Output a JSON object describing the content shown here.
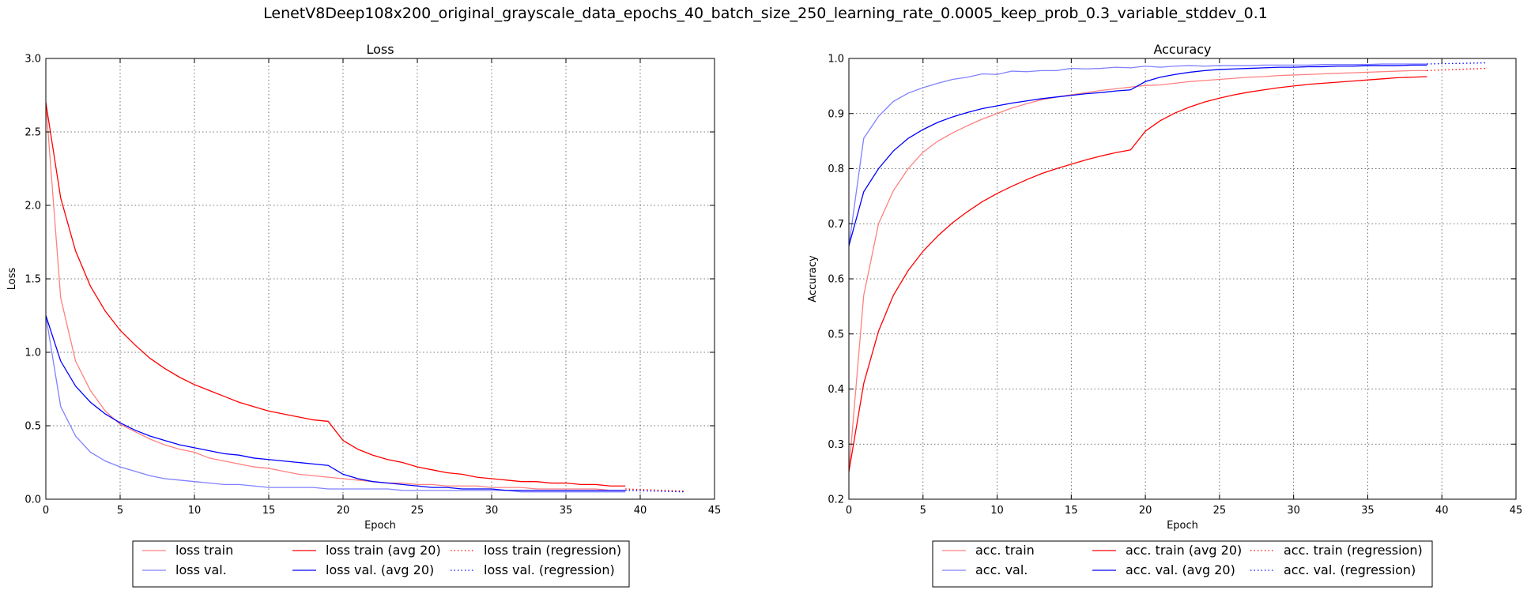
{
  "suptitle": "LenetV8Deep108x200_original_grayscale_data_epochs_40_batch_size_250_learning_rate_0.0005_keep_prob_0.3_variable_stddev_0.1",
  "colors": {
    "train": "#ff0000",
    "val": "#0000ff",
    "train_light": "#ff8080",
    "val_light": "#8080ff"
  },
  "chart_data": [
    {
      "type": "line",
      "title": "Loss",
      "xlabel": "Epoch",
      "ylabel": "Loss",
      "xlim": [
        0,
        45
      ],
      "ylim": [
        0,
        3.0
      ],
      "xticks": [
        "0",
        "5",
        "10",
        "15",
        "20",
        "25",
        "30",
        "35",
        "40",
        "45"
      ],
      "yticks": [
        "0.0",
        "0.5",
        "1.0",
        "1.5",
        "2.0",
        "2.5",
        "3.0"
      ],
      "grid": true,
      "legend_position": "below",
      "series": [
        {
          "name": "loss train",
          "color": "train_light",
          "style": "solid",
          "x": [
            0,
            1,
            2,
            3,
            4,
            5,
            6,
            7,
            8,
            9,
            10,
            11,
            12,
            13,
            14,
            15,
            16,
            17,
            18,
            19,
            20,
            21,
            22,
            23,
            24,
            25,
            26,
            27,
            28,
            29,
            30,
            31,
            32,
            33,
            34,
            35,
            36,
            37,
            38,
            39
          ],
          "values": [
            2.7,
            1.37,
            0.94,
            0.74,
            0.6,
            0.51,
            0.46,
            0.41,
            0.37,
            0.34,
            0.32,
            0.28,
            0.26,
            0.24,
            0.22,
            0.21,
            0.19,
            0.17,
            0.16,
            0.15,
            0.14,
            0.13,
            0.12,
            0.11,
            0.11,
            0.1,
            0.1,
            0.09,
            0.09,
            0.09,
            0.08,
            0.08,
            0.08,
            0.07,
            0.07,
            0.07,
            0.07,
            0.07,
            0.06,
            0.06
          ]
        },
        {
          "name": "loss val.",
          "color": "val_light",
          "style": "solid",
          "x": [
            0,
            1,
            2,
            3,
            4,
            5,
            6,
            7,
            8,
            9,
            10,
            11,
            12,
            13,
            14,
            15,
            16,
            17,
            18,
            19,
            20,
            21,
            22,
            23,
            24,
            25,
            26,
            27,
            28,
            29,
            30,
            31,
            32,
            33,
            34,
            35,
            36,
            37,
            38,
            39
          ],
          "values": [
            1.25,
            0.63,
            0.43,
            0.32,
            0.26,
            0.22,
            0.19,
            0.16,
            0.14,
            0.13,
            0.12,
            0.11,
            0.1,
            0.1,
            0.09,
            0.08,
            0.08,
            0.08,
            0.08,
            0.07,
            0.07,
            0.07,
            0.07,
            0.07,
            0.06,
            0.06,
            0.06,
            0.06,
            0.06,
            0.06,
            0.06,
            0.06,
            0.05,
            0.05,
            0.05,
            0.05,
            0.05,
            0.05,
            0.05,
            0.05
          ]
        },
        {
          "name": "loss train (avg 20)",
          "color": "train",
          "style": "solid",
          "x": [
            0,
            1,
            2,
            3,
            4,
            5,
            6,
            7,
            8,
            9,
            10,
            11,
            12,
            13,
            14,
            15,
            16,
            17,
            18,
            19,
            20,
            21,
            22,
            23,
            24,
            25,
            26,
            27,
            28,
            29,
            30,
            31,
            32,
            33,
            34,
            35,
            36,
            37,
            38,
            39
          ],
          "values": [
            2.7,
            2.05,
            1.69,
            1.45,
            1.28,
            1.15,
            1.05,
            0.96,
            0.89,
            0.83,
            0.78,
            0.74,
            0.7,
            0.66,
            0.63,
            0.6,
            0.58,
            0.56,
            0.54,
            0.53,
            0.4,
            0.34,
            0.3,
            0.27,
            0.25,
            0.22,
            0.2,
            0.18,
            0.17,
            0.15,
            0.14,
            0.13,
            0.12,
            0.12,
            0.11,
            0.11,
            0.1,
            0.1,
            0.09,
            0.09
          ]
        },
        {
          "name": "loss val. (avg 20)",
          "color": "val",
          "style": "solid",
          "x": [
            0,
            1,
            2,
            3,
            4,
            5,
            6,
            7,
            8,
            9,
            10,
            11,
            12,
            13,
            14,
            15,
            16,
            17,
            18,
            19,
            20,
            21,
            22,
            23,
            24,
            25,
            26,
            27,
            28,
            29,
            30,
            31,
            32,
            33,
            34,
            35,
            36,
            37,
            38,
            39
          ],
          "values": [
            1.25,
            0.94,
            0.77,
            0.66,
            0.58,
            0.52,
            0.47,
            0.43,
            0.4,
            0.37,
            0.35,
            0.33,
            0.31,
            0.3,
            0.28,
            0.27,
            0.26,
            0.25,
            0.24,
            0.23,
            0.17,
            0.14,
            0.12,
            0.11,
            0.1,
            0.09,
            0.08,
            0.08,
            0.07,
            0.07,
            0.07,
            0.06,
            0.06,
            0.06,
            0.06,
            0.06,
            0.06,
            0.06,
            0.06,
            0.06
          ]
        },
        {
          "name": "loss train (regression)",
          "color": "train",
          "style": "dotted",
          "x": [
            39,
            43
          ],
          "values": [
            0.07,
            0.055
          ]
        },
        {
          "name": "loss val. (regression)",
          "color": "val",
          "style": "dotted",
          "x": [
            39,
            43
          ],
          "values": [
            0.06,
            0.05
          ]
        }
      ]
    },
    {
      "type": "line",
      "title": "Accuracy",
      "xlabel": "Epoch",
      "ylabel": "Accuracy",
      "xlim": [
        0,
        45
      ],
      "ylim": [
        0.2,
        1.0
      ],
      "xticks": [
        "0",
        "5",
        "10",
        "15",
        "20",
        "25",
        "30",
        "35",
        "40",
        "45"
      ],
      "yticks": [
        "0.2",
        "0.3",
        "0.4",
        "0.5",
        "0.6",
        "0.7",
        "0.8",
        "0.9",
        "1.0"
      ],
      "grid": true,
      "legend_position": "below",
      "series": [
        {
          "name": "acc. train",
          "color": "train_light",
          "style": "solid",
          "x": [
            0,
            1,
            2,
            3,
            4,
            5,
            6,
            7,
            8,
            9,
            10,
            11,
            12,
            13,
            14,
            15,
            16,
            17,
            18,
            19,
            20,
            21,
            22,
            23,
            24,
            25,
            26,
            27,
            28,
            29,
            30,
            31,
            32,
            33,
            34,
            35,
            36,
            37,
            38,
            39
          ],
          "values": [
            0.25,
            0.57,
            0.7,
            0.76,
            0.8,
            0.83,
            0.85,
            0.865,
            0.878,
            0.89,
            0.9,
            0.91,
            0.918,
            0.925,
            0.93,
            0.934,
            0.938,
            0.942,
            0.945,
            0.948,
            0.951,
            0.952,
            0.955,
            0.958,
            0.96,
            0.962,
            0.964,
            0.966,
            0.967,
            0.969,
            0.97,
            0.971,
            0.972,
            0.973,
            0.974,
            0.975,
            0.976,
            0.977,
            0.978,
            0.978
          ]
        },
        {
          "name": "acc. val.",
          "color": "val_light",
          "style": "solid",
          "x": [
            0,
            1,
            2,
            3,
            4,
            5,
            6,
            7,
            8,
            9,
            10,
            11,
            12,
            13,
            14,
            15,
            16,
            17,
            18,
            19,
            20,
            21,
            22,
            23,
            24,
            25,
            26,
            27,
            28,
            29,
            30,
            31,
            32,
            33,
            34,
            35,
            36,
            37,
            38,
            39
          ],
          "values": [
            0.66,
            0.855,
            0.895,
            0.922,
            0.937,
            0.947,
            0.955,
            0.962,
            0.966,
            0.972,
            0.971,
            0.977,
            0.976,
            0.978,
            0.978,
            0.982,
            0.981,
            0.982,
            0.984,
            0.983,
            0.986,
            0.984,
            0.986,
            0.987,
            0.986,
            0.987,
            0.987,
            0.987,
            0.988,
            0.988,
            0.988,
            0.988,
            0.989,
            0.989,
            0.989,
            0.989,
            0.99,
            0.99,
            0.99,
            0.99
          ]
        },
        {
          "name": "acc. train (avg 20)",
          "color": "train",
          "style": "solid",
          "x": [
            0,
            1,
            2,
            3,
            4,
            5,
            6,
            7,
            8,
            9,
            10,
            11,
            12,
            13,
            14,
            15,
            16,
            17,
            18,
            19,
            20,
            21,
            22,
            23,
            24,
            25,
            26,
            27,
            28,
            29,
            30,
            31,
            32,
            33,
            34,
            35,
            36,
            37,
            38,
            39
          ],
          "values": [
            0.25,
            0.41,
            0.505,
            0.57,
            0.615,
            0.65,
            0.678,
            0.702,
            0.722,
            0.74,
            0.755,
            0.768,
            0.78,
            0.791,
            0.8,
            0.808,
            0.816,
            0.823,
            0.829,
            0.834,
            0.868,
            0.887,
            0.901,
            0.912,
            0.921,
            0.928,
            0.934,
            0.939,
            0.943,
            0.947,
            0.95,
            0.953,
            0.955,
            0.957,
            0.959,
            0.961,
            0.963,
            0.965,
            0.966,
            0.967
          ]
        },
        {
          "name": "acc. val. (avg 20)",
          "color": "val",
          "style": "solid",
          "x": [
            0,
            1,
            2,
            3,
            4,
            5,
            6,
            7,
            8,
            9,
            10,
            11,
            12,
            13,
            14,
            15,
            16,
            17,
            18,
            19,
            20,
            21,
            22,
            23,
            24,
            25,
            26,
            27,
            28,
            29,
            30,
            31,
            32,
            33,
            34,
            35,
            36,
            37,
            38,
            39
          ],
          "values": [
            0.66,
            0.758,
            0.8,
            0.832,
            0.855,
            0.871,
            0.884,
            0.894,
            0.902,
            0.909,
            0.914,
            0.919,
            0.923,
            0.927,
            0.93,
            0.933,
            0.936,
            0.938,
            0.941,
            0.943,
            0.958,
            0.966,
            0.971,
            0.975,
            0.978,
            0.98,
            0.981,
            0.982,
            0.983,
            0.984,
            0.984,
            0.985,
            0.985,
            0.986,
            0.986,
            0.987,
            0.987,
            0.987,
            0.988,
            0.988
          ]
        },
        {
          "name": "acc. train (regression)",
          "color": "train",
          "style": "dotted",
          "x": [
            39,
            43
          ],
          "values": [
            0.978,
            0.982
          ]
        },
        {
          "name": "acc. val. (regression)",
          "color": "val",
          "style": "dotted",
          "x": [
            39,
            43
          ],
          "values": [
            0.99,
            0.992
          ]
        }
      ]
    }
  ]
}
